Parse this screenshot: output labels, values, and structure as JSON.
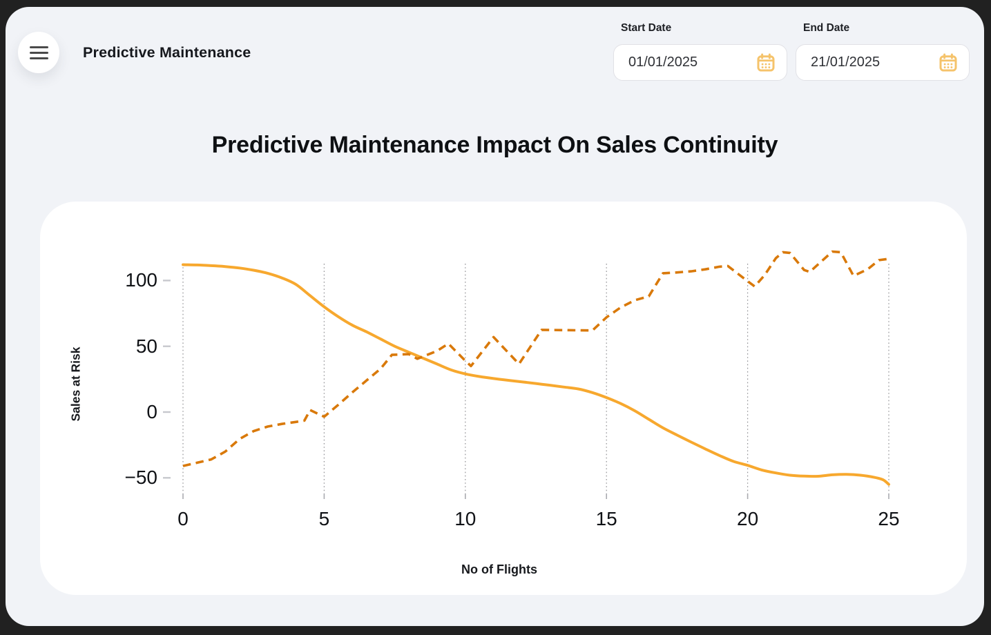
{
  "header": {
    "menu_icon": "hamburger-icon",
    "title": "Predictive Maintenance"
  },
  "filters": {
    "start_date": {
      "label": "Start Date",
      "value": "01/01/2025",
      "icon": "calendar-icon"
    },
    "end_date": {
      "label": "End Date",
      "value": "21/01/2025",
      "icon": "calendar-icon"
    }
  },
  "main": {
    "title": "Predictive Maintenance Impact On Sales Continuity"
  },
  "chart_data": {
    "type": "line",
    "title": "Predictive Maintenance Impact On Sales Continuity",
    "xlabel": "No of Flights",
    "ylabel": "Sales at Risk",
    "xlim": [
      0,
      25
    ],
    "ylim": [
      -61,
      113
    ],
    "x_ticks": [
      0,
      5,
      10,
      15,
      20,
      25
    ],
    "y_ticks": [
      100,
      50,
      0,
      -50
    ],
    "grid": "vertical dotted gridlines at x ticks",
    "legend": "none",
    "series": [
      {
        "name": "sales-at-risk-declining",
        "style": "solid",
        "color": "#F7A82E",
        "points": [
          [
            0,
            112
          ],
          [
            0.5,
            111.8
          ],
          [
            1,
            111.3
          ],
          [
            1.5,
            110.6
          ],
          [
            2,
            109.5
          ],
          [
            2.5,
            107.8
          ],
          [
            3,
            105.5
          ],
          [
            3.5,
            102
          ],
          [
            4,
            97
          ],
          [
            4.5,
            88.5
          ],
          [
            5,
            80
          ],
          [
            5.5,
            72.5
          ],
          [
            6,
            66
          ],
          [
            6.5,
            61
          ],
          [
            7,
            55.5
          ],
          [
            7.5,
            50
          ],
          [
            8,
            45.5
          ],
          [
            8.5,
            41
          ],
          [
            9,
            36.5
          ],
          [
            9.5,
            32
          ],
          [
            10,
            29
          ],
          [
            10.5,
            27
          ],
          [
            11,
            25.5
          ],
          [
            11.5,
            24.2
          ],
          [
            12,
            23
          ],
          [
            12.5,
            21.7
          ],
          [
            13,
            20.4
          ],
          [
            13.5,
            19
          ],
          [
            14,
            17.6
          ],
          [
            14.5,
            14.8
          ],
          [
            15,
            11
          ],
          [
            15.5,
            6.5
          ],
          [
            16,
            1
          ],
          [
            16.5,
            -5.5
          ],
          [
            17,
            -12
          ],
          [
            17.5,
            -17.5
          ],
          [
            18,
            -22.8
          ],
          [
            18.5,
            -28
          ],
          [
            19,
            -33
          ],
          [
            19.5,
            -37.5
          ],
          [
            20,
            -40.5
          ],
          [
            20.5,
            -44
          ],
          [
            21,
            -46.3
          ],
          [
            21.5,
            -48
          ],
          [
            22,
            -48.7
          ],
          [
            22.5,
            -48.8
          ],
          [
            23,
            -47.7
          ],
          [
            23.5,
            -47.4
          ],
          [
            24,
            -48
          ],
          [
            24.5,
            -49.7
          ],
          [
            24.8,
            -51.5
          ],
          [
            25,
            -55
          ]
        ]
      },
      {
        "name": "sales-at-risk-rising",
        "style": "dashed",
        "color": "#D9790A",
        "points": [
          [
            0,
            -41
          ],
          [
            0.5,
            -38.5
          ],
          [
            1,
            -36
          ],
          [
            1.5,
            -30
          ],
          [
            2,
            -20.5
          ],
          [
            2.5,
            -14.5
          ],
          [
            3,
            -11
          ],
          [
            3.5,
            -9
          ],
          [
            4,
            -7.5
          ],
          [
            4.3,
            -6.5
          ],
          [
            4.5,
            1.5
          ],
          [
            5,
            -3.5
          ],
          [
            5.5,
            5.5
          ],
          [
            6,
            15
          ],
          [
            6.5,
            24
          ],
          [
            7,
            33
          ],
          [
            7.4,
            43.5
          ],
          [
            8,
            44
          ],
          [
            8.3,
            40.5
          ],
          [
            9,
            46.5
          ],
          [
            9.4,
            52
          ],
          [
            10,
            39
          ],
          [
            10.2,
            35
          ],
          [
            11,
            57
          ],
          [
            11.9,
            36.5
          ],
          [
            12.7,
            62.5
          ],
          [
            13.5,
            62.3
          ],
          [
            14.5,
            62
          ],
          [
            15,
            72
          ],
          [
            15.5,
            79.5
          ],
          [
            16,
            85
          ],
          [
            16.5,
            88
          ],
          [
            17,
            105.5
          ],
          [
            17.4,
            106
          ],
          [
            18,
            107
          ],
          [
            18.5,
            108.5
          ],
          [
            19,
            110.5
          ],
          [
            19.3,
            111
          ],
          [
            20,
            99.5
          ],
          [
            20.25,
            95.5
          ],
          [
            20.6,
            104
          ],
          [
            21,
            117
          ],
          [
            21.25,
            121.5
          ],
          [
            21.5,
            121
          ],
          [
            22,
            108
          ],
          [
            22.2,
            106.5
          ],
          [
            23,
            122
          ],
          [
            23.3,
            121.5
          ],
          [
            23.75,
            103.5
          ],
          [
            24.25,
            108.5
          ],
          [
            24.65,
            115.5
          ],
          [
            25,
            116.5
          ]
        ]
      }
    ]
  },
  "colors": {
    "frame": "#212121",
    "app_background": "#f1f3f7",
    "card": "#ffffff",
    "solid_line": "#F7A82E",
    "dashed_line": "#D9790A",
    "calendar_icon": "#F5C36B",
    "gridline": "#8f8f93"
  }
}
